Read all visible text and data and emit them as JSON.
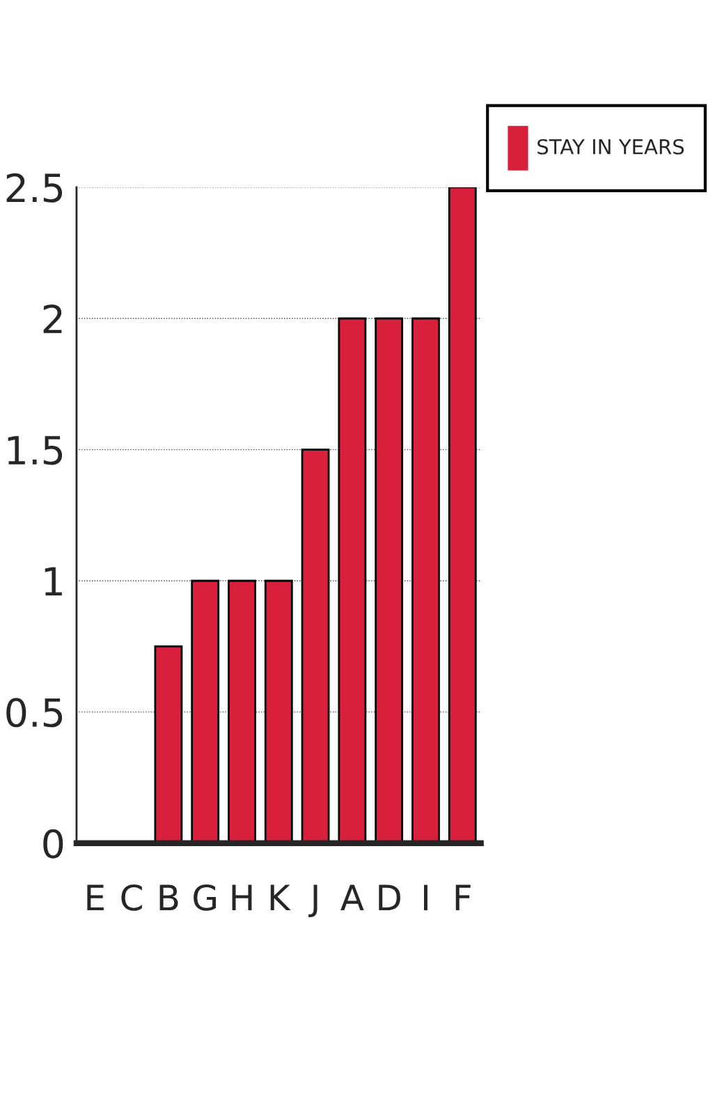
{
  "chart_data": {
    "type": "bar",
    "categories": [
      "E",
      "C",
      "B",
      "G",
      "H",
      "K",
      "J",
      "A",
      "D",
      "I",
      "F"
    ],
    "series": [
      {
        "name": "STAY IN YEARS",
        "color": "#d8203c",
        "values": [
          0,
          0,
          0.75,
          1,
          1,
          1,
          1.5,
          2,
          2,
          2,
          2.5
        ]
      }
    ],
    "ylim": [
      0,
      2.5
    ],
    "yticks": [
      0,
      0.5,
      1,
      1.5,
      2,
      2.5
    ],
    "grid": "y",
    "legend": "top right"
  }
}
